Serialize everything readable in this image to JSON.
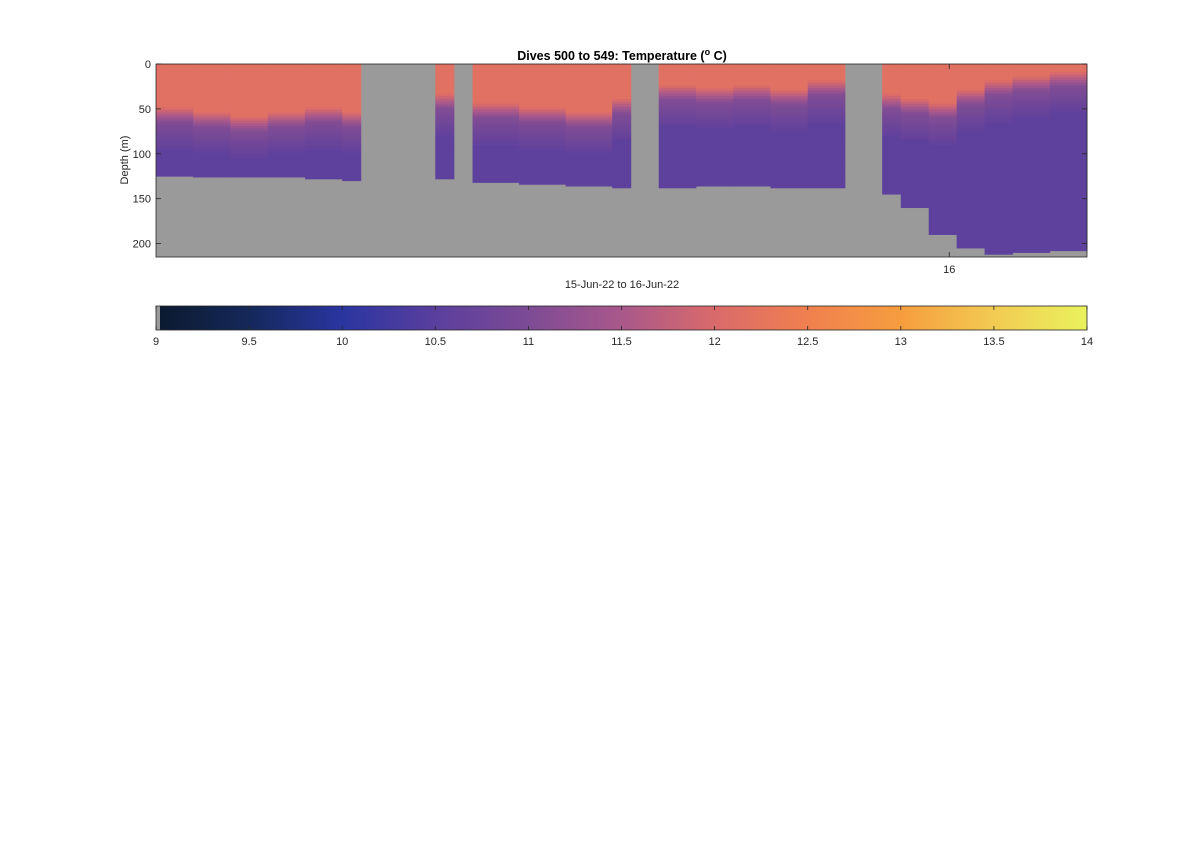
{
  "chart_data": [
    {
      "type": "heatmap",
      "title": {
        "main": "Dives 500 to 549: Temperature (",
        "superscript": "o",
        "suffix": " C)"
      },
      "xlabel": "15-Jun-22 to 16-Jun-22",
      "ylabel": "Depth (m)",
      "ylim": [
        0,
        215
      ],
      "y_reversed": true,
      "y_ticks": [
        0,
        50,
        100,
        150,
        200
      ],
      "x_tick_labels": [
        "16"
      ],
      "x_tick_positions_fraction_of_range": [
        0.852
      ],
      "no_data_color": "#9a9a9a",
      "color_limits": [
        9,
        14
      ],
      "grid": false,
      "columns": [
        {
          "x": [
            0.0,
            4.0
          ],
          "thermo": 60,
          "bottom": 125
        },
        {
          "x": [
            4.0,
            8.0
          ],
          "thermo": 65,
          "bottom": 126
        },
        {
          "x": [
            8.0,
            12.0
          ],
          "thermo": 70,
          "bottom": 126
        },
        {
          "x": [
            12.0,
            16.0
          ],
          "thermo": 65,
          "bottom": 126
        },
        {
          "x": [
            16.0,
            20.0
          ],
          "thermo": 60,
          "bottom": 128
        },
        {
          "x": [
            20.0,
            22.0
          ],
          "thermo": 65,
          "bottom": 130
        },
        {
          "x": [
            22.0,
            30.0
          ],
          "nodata": true
        },
        {
          "x": [
            30.0,
            32.0
          ],
          "thermo": 45,
          "bottom": 128
        },
        {
          "x": [
            32.0,
            34.0
          ],
          "nodata": true
        },
        {
          "x": [
            34.0,
            39.0
          ],
          "thermo": 55,
          "bottom": 132
        },
        {
          "x": [
            39.0,
            44.0
          ],
          "thermo": 60,
          "bottom": 134
        },
        {
          "x": [
            44.0,
            49.0
          ],
          "thermo": 65,
          "bottom": 136
        },
        {
          "x": [
            49.0,
            51.0
          ],
          "thermo": 50,
          "bottom": 138
        },
        {
          "x": [
            51.0,
            54.0
          ],
          "nodata": true
        },
        {
          "x": [
            54.0,
            58.0
          ],
          "thermo": 35,
          "bottom": 138
        },
        {
          "x": [
            58.0,
            62.0
          ],
          "thermo": 38,
          "bottom": 136
        },
        {
          "x": [
            62.0,
            66.0
          ],
          "thermo": 35,
          "bottom": 136
        },
        {
          "x": [
            66.0,
            70.0
          ],
          "thermo": 40,
          "bottom": 138
        },
        {
          "x": [
            70.0,
            74.0
          ],
          "thermo": 30,
          "bottom": 138
        },
        {
          "x": [
            74.0,
            78.0
          ],
          "nodata": true
        },
        {
          "x": [
            78.0,
            80.0
          ],
          "thermo": 45,
          "bottom": 145
        },
        {
          "x": [
            80.0,
            83.0
          ],
          "thermo": 50,
          "bottom": 160
        },
        {
          "x": [
            83.0,
            86.0
          ],
          "thermo": 55,
          "bottom": 190
        },
        {
          "x": [
            86.0,
            89.0
          ],
          "thermo": 40,
          "bottom": 205
        },
        {
          "x": [
            89.0,
            92.0
          ],
          "thermo": 30,
          "bottom": 212
        },
        {
          "x": [
            92.0,
            96.0
          ],
          "thermo": 25,
          "bottom": 210
        },
        {
          "x": [
            96.0,
            100.0
          ],
          "thermo": 20,
          "bottom": 208
        }
      ]
    },
    {
      "type": "colorbar",
      "range": [
        9,
        14
      ],
      "tick_labels": [
        "9",
        "9.5",
        "10",
        "10.5",
        "11",
        "11.5",
        "12",
        "12.5",
        "13",
        "13.5",
        "14"
      ],
      "tick_values": [
        9,
        9.5,
        10,
        10.5,
        11,
        11.5,
        12,
        12.5,
        13,
        13.5,
        14
      ],
      "no_data_color": "#9a9a9a",
      "colormap_stops": [
        {
          "value": 9.0,
          "color": "#0b1a2e"
        },
        {
          "value": 9.5,
          "color": "#15285a"
        },
        {
          "value": 10.0,
          "color": "#2a35a0"
        },
        {
          "value": 10.5,
          "color": "#5a3f9e"
        },
        {
          "value": 11.0,
          "color": "#7d4b95"
        },
        {
          "value": 11.5,
          "color": "#a9588b"
        },
        {
          "value": 12.0,
          "color": "#d96a6b"
        },
        {
          "value": 12.5,
          "color": "#f0804f"
        },
        {
          "value": 13.0,
          "color": "#f69d3e"
        },
        {
          "value": 13.5,
          "color": "#f2cb52"
        },
        {
          "value": 14.0,
          "color": "#e9f25d"
        }
      ]
    }
  ]
}
